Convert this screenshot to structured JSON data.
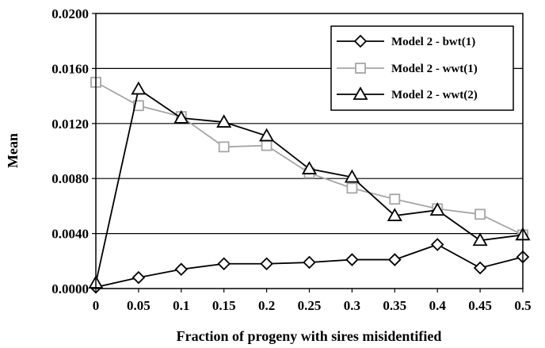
{
  "chart_data": {
    "type": "line",
    "title": "",
    "xlabel": "Fraction of progeny with sires misidentified",
    "ylabel": "Mean",
    "x": [
      0,
      0.05,
      0.1,
      0.15,
      0.2,
      0.25,
      0.3,
      0.35,
      0.4,
      0.45,
      0.5
    ],
    "x_tick_labels": [
      "0",
      "0.05",
      "0.1",
      "0.15",
      "0.2",
      "0.25",
      "0.3",
      "0.35",
      "0.4",
      "0.45",
      "0.5"
    ],
    "y_tick_values": [
      0,
      0.004,
      0.008,
      0.012,
      0.016,
      0.02
    ],
    "y_tick_labels": [
      "0.0000",
      "0.0040",
      "0.0080",
      "0.0120",
      "0.0160",
      "0.0200"
    ],
    "ylim": [
      0,
      0.02
    ],
    "grid": "horizontal",
    "legend_position": "top-right",
    "series": [
      {
        "name": "Model 2 - bwt(1)",
        "marker": "diamond",
        "color": "#000000",
        "values": [
          0.0001,
          0.0008,
          0.0014,
          0.0018,
          0.0018,
          0.0019,
          0.0021,
          0.0021,
          0.0032,
          0.0015,
          0.0023
        ]
      },
      {
        "name": "Model 2 - wwt(1)",
        "marker": "square",
        "color": "#a6a6a6",
        "values": [
          0.015,
          0.0133,
          0.0125,
          0.0103,
          0.0104,
          0.0084,
          0.0073,
          0.0065,
          0.0058,
          0.0054,
          0.0039
        ]
      },
      {
        "name": "Model 2 - wwt(2)",
        "marker": "triangle",
        "color": "#000000",
        "values": [
          0.0004,
          0.0145,
          0.0124,
          0.0121,
          0.0111,
          0.0087,
          0.0081,
          0.0053,
          0.0057,
          0.0035,
          0.0039
        ]
      }
    ]
  }
}
